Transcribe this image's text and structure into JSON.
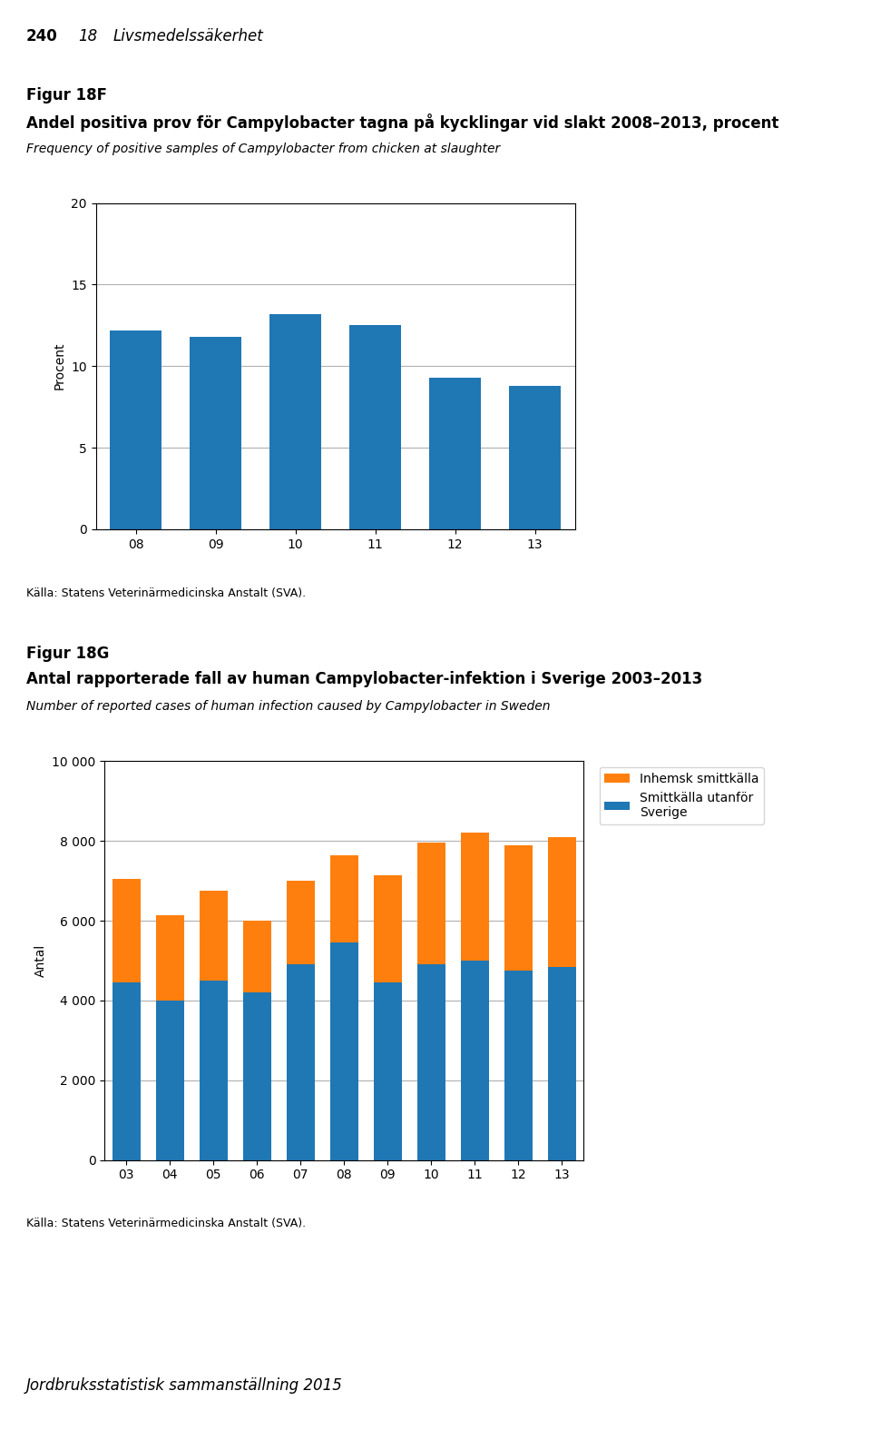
{
  "header": [
    "240",
    "18",
    "Livsmedelssäkerhet"
  ],
  "footer": "Jordbruksstatistisk sammanställning 2015",
  "chart_data": [
    {
      "type": "bar",
      "figure_number": "Figur 18F",
      "title": "Andel positiva prov för Campylobacter tagna på kycklingar vid slakt 2008–2013, procent",
      "subtitle": "Frequency of positive samples of Campylobacter from chicken at slaughter",
      "ylabel": "Procent",
      "categories": [
        "08",
        "09",
        "10",
        "11",
        "12",
        "13"
      ],
      "series": [
        {
          "name": null,
          "values": [
            12.2,
            11.8,
            13.2,
            12.5,
            9.3,
            8.8
          ]
        }
      ],
      "ylim": [
        0,
        20
      ],
      "yticks": [
        0,
        5,
        10,
        15,
        20
      ],
      "grid": true,
      "source": "Källa: Statens Veterinärmedicinska Anstalt (SVA)."
    },
    {
      "type": "bar",
      "figure_number": "Figur 18G",
      "title": "Antal rapporterade fall av human Campylobacter-infektion i Sverige 2003–2013",
      "subtitle": "Number of reported cases of human infection caused by Campylobacter in Sweden",
      "ylabel": "Antal",
      "categories": [
        "03",
        "04",
        "05",
        "06",
        "07",
        "08",
        "09",
        "10",
        "11",
        "12",
        "13"
      ],
      "stacked": true,
      "series": [
        {
          "name": "Smittkälla utanför\nSverige",
          "values": [
            4450,
            4000,
            4500,
            4200,
            4900,
            5450,
            4450,
            4900,
            5000,
            4750,
            4850
          ]
        },
        {
          "name": "Inhemsk smittkälla",
          "values": [
            2600,
            2150,
            2250,
            1800,
            2100,
            2200,
            2700,
            3050,
            3200,
            3150,
            3250
          ]
        }
      ],
      "ylim": [
        0,
        10000
      ],
      "yticks": [
        0,
        {
          "value": 2000,
          "label": "2 000"
        },
        {
          "value": 4000,
          "label": "4 000"
        },
        {
          "value": 6000,
          "label": "6 000"
        },
        {
          "value": 8000,
          "label": "8 000"
        },
        {
          "value": 10000,
          "label": "10 000"
        }
      ],
      "grid": true,
      "legend": "upper left",
      "source": "Källa: Statens Veterinärmedicinska Anstalt (SVA)."
    }
  ]
}
